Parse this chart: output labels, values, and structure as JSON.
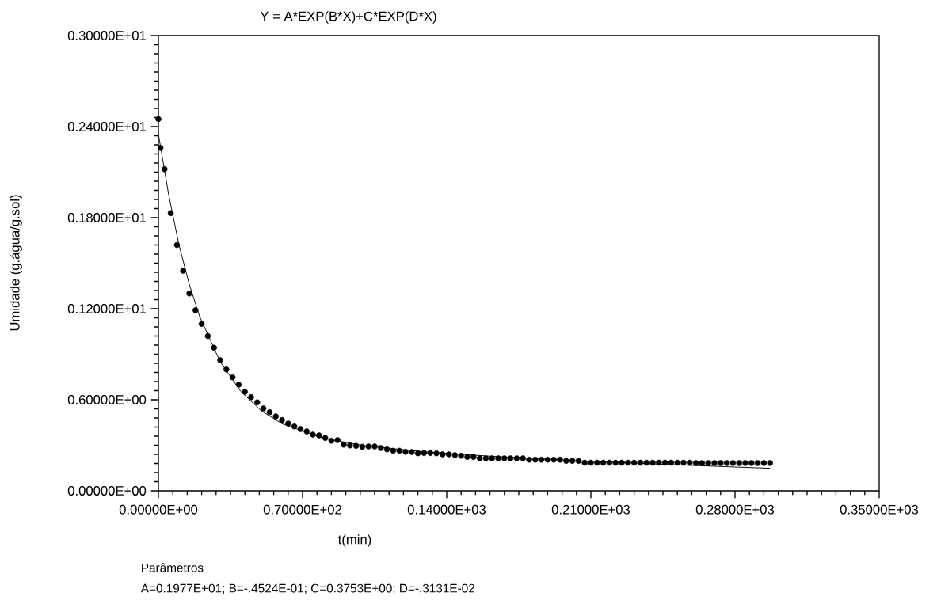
{
  "chart_data": {
    "type": "scatter",
    "title": "Y = A*EXP(B*X)+C*EXP(D*X)",
    "xlabel": "t(min)",
    "ylabel": "Umidade (g.água/g.sol)",
    "xlim": [
      0,
      350
    ],
    "ylim": [
      0,
      3
    ],
    "xticks": [
      {
        "value": 0,
        "label": "0.00000E+00"
      },
      {
        "value": 70,
        "label": "0.70000E+02"
      },
      {
        "value": 140,
        "label": "0.14000E+03"
      },
      {
        "value": 210,
        "label": "0.21000E+03"
      },
      {
        "value": 280,
        "label": "0.28000E+03"
      },
      {
        "value": 350,
        "label": "0.35000E+03"
      }
    ],
    "yticks": [
      {
        "value": 0,
        "label": "0.00000E+00"
      },
      {
        "value": 0.6,
        "label": "0.60000E+00"
      },
      {
        "value": 1.2,
        "label": "0.12000E+01"
      },
      {
        "value": 1.8,
        "label": "0.18000E+01"
      },
      {
        "value": 2.4,
        "label": "0.24000E+01"
      },
      {
        "value": 3.0,
        "label": "0.30000E+01"
      }
    ],
    "annotations": [
      "Parâmetros",
      "A=0.1977E+01;  B=-.4524E-01;  C=0.3753E+00;  D=-.3131E-02"
    ],
    "series": [
      {
        "color": "#000000",
        "marker": "circle",
        "x": [
          0,
          1,
          3,
          6,
          9,
          12,
          15,
          18,
          21,
          24,
          27,
          30,
          33,
          36,
          39,
          42,
          45,
          48,
          51,
          54,
          57,
          60,
          63,
          66,
          69,
          72,
          75,
          78,
          81,
          84,
          87,
          90,
          93,
          96,
          99,
          102,
          105,
          108,
          111,
          114,
          117,
          120,
          123,
          126,
          129,
          132,
          135,
          138,
          141,
          144,
          147,
          150,
          153,
          156,
          159,
          162,
          165,
          168,
          171,
          174,
          177,
          180,
          183,
          186,
          189,
          192,
          195,
          198,
          201,
          204,
          207,
          210,
          213,
          216,
          219,
          222,
          225,
          228,
          231,
          234,
          237,
          240,
          243,
          246,
          249,
          252,
          255,
          258,
          261,
          264,
          267,
          270,
          273,
          276,
          279,
          282,
          285,
          288,
          291,
          294,
          297
        ],
        "values": [
          2.45,
          2.26,
          2.12,
          1.83,
          1.62,
          1.45,
          1.3,
          1.19,
          1.1,
          1.02,
          0.943,
          0.861,
          0.8,
          0.748,
          0.699,
          0.652,
          0.617,
          0.583,
          0.543,
          0.518,
          0.49,
          0.466,
          0.443,
          0.424,
          0.407,
          0.391,
          0.37,
          0.365,
          0.348,
          0.33,
          0.334,
          0.304,
          0.299,
          0.296,
          0.29,
          0.292,
          0.292,
          0.282,
          0.273,
          0.264,
          0.264,
          0.257,
          0.256,
          0.247,
          0.249,
          0.249,
          0.247,
          0.24,
          0.24,
          0.235,
          0.231,
          0.223,
          0.223,
          0.214,
          0.214,
          0.214,
          0.214,
          0.214,
          0.214,
          0.214,
          0.214,
          0.205,
          0.205,
          0.205,
          0.205,
          0.205,
          0.205,
          0.197,
          0.197,
          0.197,
          0.185,
          0.185,
          0.185,
          0.185,
          0.185,
          0.185,
          0.185,
          0.185,
          0.185,
          0.185,
          0.185,
          0.185,
          0.185,
          0.185,
          0.185,
          0.185,
          0.185,
          0.185,
          0.183,
          0.183,
          0.183,
          0.183,
          0.183,
          0.183,
          0.183,
          0.183,
          0.183,
          0.183,
          0.183,
          0.183,
          0.183
        ]
      },
      {
        "type": "line",
        "color": "#000000",
        "marker": "none",
        "line_style": "solid",
        "x": [
          0,
          5,
          10,
          15,
          20,
          30,
          40,
          50,
          60,
          80,
          100,
          130,
          160,
          200,
          250,
          297
        ],
        "values": [
          2.35,
          1.95,
          1.62,
          1.36,
          1.15,
          0.85,
          0.655,
          0.527,
          0.442,
          0.346,
          0.297,
          0.256,
          0.229,
          0.2,
          0.172,
          0.148
        ]
      }
    ]
  }
}
